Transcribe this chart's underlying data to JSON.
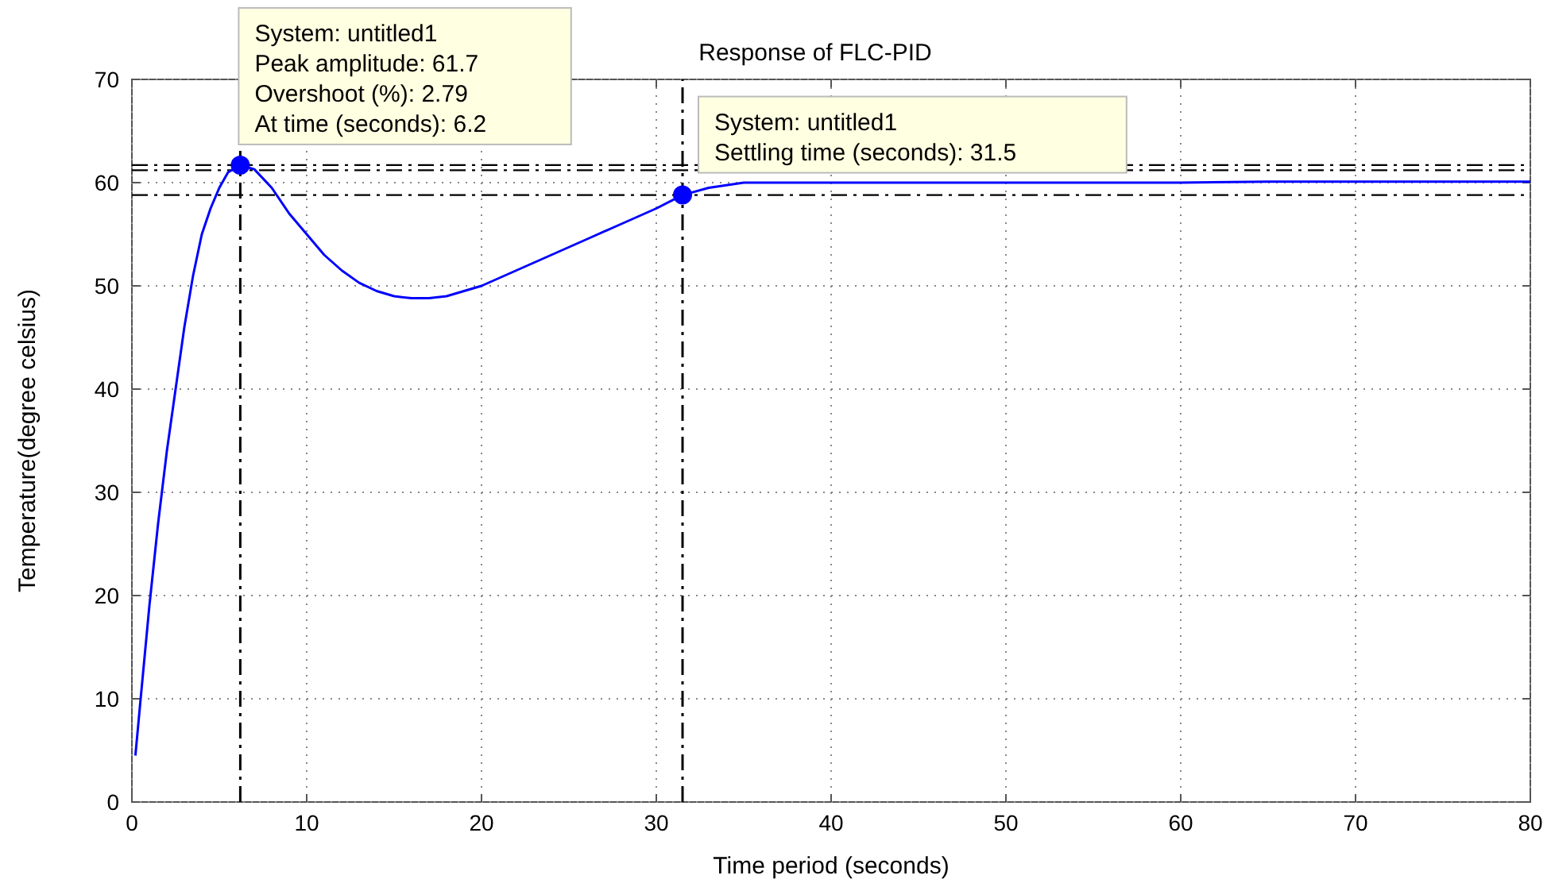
{
  "chart_data": {
    "type": "line",
    "title": "Response of FLC-PID",
    "xlabel": "Time period (seconds)",
    "ylabel": "Temperature(degree celsius)",
    "xlim": [
      0,
      80
    ],
    "xticks": [
      0,
      10,
      20,
      30,
      40,
      50,
      60,
      70,
      80
    ],
    "ylim": [
      0,
      70
    ],
    "yticks": [
      0,
      10,
      20,
      30,
      40,
      50,
      60,
      70
    ],
    "grid": true,
    "series": [
      {
        "color": "#0000ff",
        "line_style": "solid",
        "marker": "none",
        "x": [
          0.2,
          0.5,
          1,
          1.5,
          2,
          2.5,
          3,
          3.5,
          4,
          4.5,
          5,
          5.5,
          6.2,
          7,
          8,
          9,
          10,
          11,
          12,
          13,
          14,
          15,
          16,
          17,
          18,
          19,
          20,
          22,
          24,
          26,
          28,
          30,
          31.5,
          33,
          35,
          40,
          50,
          60,
          65,
          70,
          80
        ],
        "values": [
          4.5,
          10,
          19,
          27,
          34,
          40,
          46,
          51,
          55,
          57.5,
          59.5,
          61,
          61.7,
          61.3,
          59.5,
          57,
          55,
          53,
          51.5,
          50.3,
          49.5,
          49,
          48.8,
          48.8,
          49,
          49.5,
          50,
          51.5,
          53,
          54.5,
          56,
          57.5,
          58.8,
          59.5,
          60,
          60,
          60,
          60,
          60.1,
          60.1,
          60.1
        ]
      },
      {
        "type": "scatter",
        "color": "#0000ff",
        "marker": "circle",
        "x": [
          6.2,
          31.5
        ],
        "values": [
          61.7,
          58.8
        ]
      }
    ],
    "ref_lines": [
      {
        "axis": "y",
        "value": 61.7,
        "color": "#000000",
        "line_style": "dashdot"
      },
      {
        "axis": "y",
        "value": 61.2,
        "color": "#000000",
        "line_style": "dashdot"
      },
      {
        "axis": "y",
        "value": 58.8,
        "color": "#000000",
        "line_style": "dashdot"
      },
      {
        "axis": "x",
        "value": 6.2,
        "color": "#000000",
        "line_style": "dashdot"
      },
      {
        "axis": "x",
        "value": 31.5,
        "color": "#000000",
        "line_style": "dashdot"
      }
    ],
    "annotations": [
      {
        "text": "System: untitled1\nPeak amplitude: 61.7\nOvershoot (%): 2.79\nAt time (seconds): 6.2",
        "x": 6.2,
        "y": 61.7
      },
      {
        "text": "System: untitled1\nSettling time (seconds): 31.5",
        "x": 31.5,
        "y": 58.8
      }
    ]
  }
}
